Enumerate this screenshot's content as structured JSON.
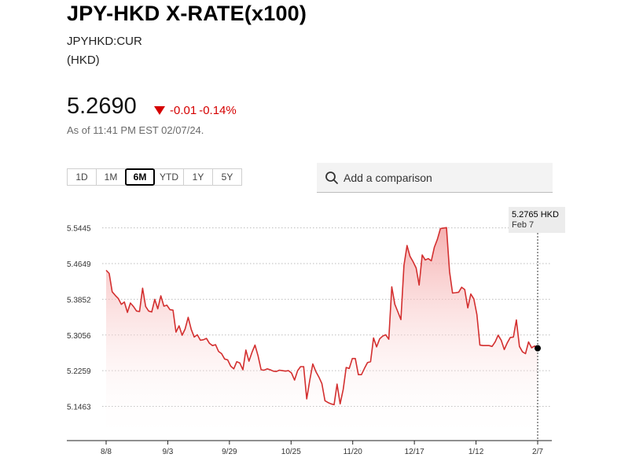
{
  "header": {
    "title": "JPY-HKD X-RATE(x100)",
    "ticker": "JPYHKD:CUR",
    "currency": "(HKD)"
  },
  "quote": {
    "price": "5.2690",
    "change": "-0.01",
    "change_pct": "-0.14%",
    "as_of": "As of 11:41 PM EST 02/07/24."
  },
  "range_tabs": [
    "1D",
    "1M",
    "6M",
    "YTD",
    "1Y",
    "5Y"
  ],
  "active_tab": "6M",
  "compare": {
    "placeholder": "Add a comparison"
  },
  "tooltip": {
    "value": "5.2765 HKD",
    "date": "Feb 7"
  },
  "colors": {
    "line": "#d32f2f",
    "negative": "#d50000",
    "fill_top": "#f4a3a3"
  },
  "chart_data": {
    "type": "area",
    "title": "",
    "xlabel": "",
    "ylabel": "",
    "y_ticks": [
      5.5445,
      5.4649,
      5.3852,
      5.3056,
      5.2259,
      5.1463
    ],
    "ylim": [
      5.07,
      5.6
    ],
    "x_ticks": [
      "8/8",
      "9/3",
      "9/29",
      "10/25",
      "11/20",
      "12/17",
      "1/12",
      "2/7"
    ],
    "grid": "horizontal dotted",
    "values": [
      5.45,
      5.443,
      5.402,
      5.394,
      5.387,
      5.374,
      5.379,
      5.356,
      5.377,
      5.369,
      5.359,
      5.358,
      5.41,
      5.369,
      5.359,
      5.357,
      5.385,
      5.364,
      5.393,
      5.37,
      5.372,
      5.362,
      5.361,
      5.312,
      5.326,
      5.305,
      5.319,
      5.345,
      5.318,
      5.301,
      5.306,
      5.294,
      5.295,
      5.298,
      5.287,
      5.282,
      5.284,
      5.269,
      5.264,
      5.252,
      5.25,
      5.236,
      5.23,
      5.246,
      5.243,
      5.228,
      5.272,
      5.247,
      5.267,
      5.283,
      5.259,
      5.228,
      5.227,
      5.23,
      5.228,
      5.225,
      5.224,
      5.227,
      5.226,
      5.225,
      5.226,
      5.221,
      5.205,
      5.226,
      5.235,
      5.235,
      5.163,
      5.204,
      5.241,
      5.224,
      5.212,
      5.197,
      5.159,
      5.155,
      5.152,
      5.15,
      5.196,
      5.152,
      5.184,
      5.233,
      5.231,
      5.253,
      5.253,
      5.217,
      5.217,
      5.231,
      5.244,
      5.246,
      5.299,
      5.279,
      5.297,
      5.303,
      5.306,
      5.296,
      5.413,
      5.374,
      5.357,
      5.34,
      5.461,
      5.505,
      5.481,
      5.469,
      5.455,
      5.417,
      5.484,
      5.473,
      5.476,
      5.471,
      5.501,
      5.519,
      5.543,
      5.544,
      5.545,
      5.447,
      5.399,
      5.4,
      5.401,
      5.412,
      5.407,
      5.366,
      5.397,
      5.386,
      5.351,
      5.283,
      5.282,
      5.282,
      5.282,
      5.28,
      5.29,
      5.305,
      5.294,
      5.273,
      5.288,
      5.3,
      5.301,
      5.339,
      5.28,
      5.268,
      5.264,
      5.29,
      5.277,
      5.281,
      5.276
    ]
  }
}
